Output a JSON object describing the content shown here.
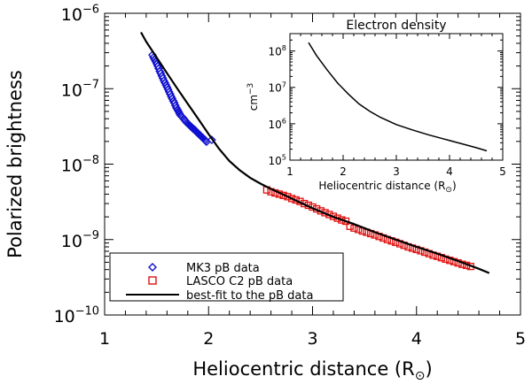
{
  "chart_data": {
    "type": "scatter",
    "xlabel": "Heliocentric distance (R",
    "xlabel_sub": "⊙",
    "xlabel_close": ")",
    "ylabel": "Polarized brightness",
    "xlim": [
      1,
      5
    ],
    "ylim": [
      1e-10,
      1e-06
    ],
    "yscale": "log",
    "xticks": [
      "1",
      "2",
      "3",
      "4",
      "5"
    ],
    "yticks": [
      {
        "value": 1e-10,
        "base": "10",
        "exp": "−10"
      },
      {
        "value": 1e-09,
        "base": "10",
        "exp": "−9"
      },
      {
        "value": 1e-08,
        "base": "10",
        "exp": "−8"
      },
      {
        "value": 1e-07,
        "base": "10",
        "exp": "−7"
      },
      {
        "value": 1e-06,
        "base": "10",
        "exp": "−6"
      }
    ],
    "series": [
      {
        "name": "MK3 pB data",
        "marker": "diamond",
        "color": "#1010d0",
        "x": [
          1.46,
          1.47,
          1.48,
          1.49,
          1.5,
          1.51,
          1.52,
          1.53,
          1.54,
          1.55,
          1.56,
          1.57,
          1.58,
          1.59,
          1.6,
          1.61,
          1.62,
          1.63,
          1.64,
          1.65,
          1.66,
          1.67,
          1.68,
          1.69,
          1.7,
          1.71,
          1.72,
          1.73,
          1.74,
          1.75,
          1.76,
          1.77,
          1.78,
          1.79,
          1.8,
          1.81,
          1.82,
          1.83,
          1.84,
          1.85,
          1.86,
          1.87,
          1.88,
          1.89,
          1.9,
          1.91,
          1.92,
          1.93,
          1.94,
          1.95,
          1.96,
          1.97,
          1.98,
          2.03
        ],
        "y": [
          2.8e-07,
          2.6e-07,
          2.45e-07,
          2.3e-07,
          2.15e-07,
          2e-07,
          1.85e-07,
          1.7e-07,
          1.6e-07,
          1.48e-07,
          1.38e-07,
          1.28e-07,
          1.2e-07,
          1.12e-07,
          1.05e-07,
          9.8e-08,
          9.1e-08,
          8.5e-08,
          7.9e-08,
          7.4e-08,
          6.9e-08,
          6.5e-08,
          6e-08,
          5.6e-08,
          5.3e-08,
          5e-08,
          4.7e-08,
          4.45e-08,
          4.3e-08,
          4.15e-08,
          4e-08,
          3.85e-08,
          3.7e-08,
          3.55e-08,
          3.45e-08,
          3.35e-08,
          3.25e-08,
          3.15e-08,
          3.05e-08,
          2.95e-08,
          2.9e-08,
          2.82e-08,
          2.72e-08,
          2.62e-08,
          2.55e-08,
          2.48e-08,
          2.4e-08,
          2.32e-08,
          2.25e-08,
          2.2e-08,
          2.12e-08,
          2.05e-08,
          1.98e-08,
          2.1e-08
        ]
      },
      {
        "name": "LASCO C2 pB data",
        "marker": "square",
        "color": "#e01010",
        "x": [
          2.56,
          2.6,
          2.64,
          2.68,
          2.72,
          2.76,
          2.8,
          2.84,
          2.88,
          2.92,
          2.96,
          3.0,
          3.04,
          3.08,
          3.12,
          3.16,
          3.2,
          3.24,
          3.28,
          3.32,
          3.36,
          3.4,
          3.44,
          3.48,
          3.52,
          3.56,
          3.6,
          3.64,
          3.68,
          3.72,
          3.76,
          3.8,
          3.84,
          3.88,
          3.92,
          3.96,
          4.0,
          4.04,
          4.08,
          4.12,
          4.16,
          4.2,
          4.24,
          4.28,
          4.32,
          4.36,
          4.4,
          4.44,
          4.48,
          4.52
        ],
        "y": [
          4.55e-09,
          4.3e-09,
          4.15e-09,
          4e-09,
          3.85e-09,
          3.7e-09,
          3.5e-09,
          3.35e-09,
          3.2e-09,
          3e-09,
          2.85e-09,
          2.7e-09,
          2.55e-09,
          2.4e-09,
          2.27e-09,
          2.15e-09,
          2.03e-09,
          1.92e-09,
          1.82e-09,
          1.75e-09,
          1.5e-09,
          1.42e-09,
          1.36e-09,
          1.3e-09,
          1.25e-09,
          1.2e-09,
          1.15e-09,
          1.1e-09,
          1.05e-09,
          1e-09,
          9.6e-10,
          9.2e-10,
          8.8e-10,
          8.4e-10,
          8e-10,
          7.7e-10,
          7.4e-10,
          7.1e-10,
          6.8e-10,
          6.5e-10,
          6.2e-10,
          6e-10,
          5.75e-10,
          5.5e-10,
          5.3e-10,
          5.1e-10,
          4.9e-10,
          4.7e-10,
          4.55e-10,
          4.4e-10
        ]
      },
      {
        "name": "best-fit to the pB data",
        "marker": "line",
        "color": "#000000",
        "x": [
          1.35,
          1.4,
          1.5,
          1.6,
          1.7,
          1.8,
          1.9,
          2.0,
          2.1,
          2.2,
          2.3,
          2.4,
          2.5,
          2.6,
          2.8,
          3.0,
          3.2,
          3.4,
          3.6,
          3.8,
          4.0,
          4.2,
          4.4,
          4.6,
          4.7
        ],
        "y": [
          5.6e-07,
          4.2e-07,
          2.6e-07,
          1.6e-07,
          1e-07,
          6.3e-08,
          4e-08,
          2.5e-08,
          1.6e-08,
          1.1e-08,
          8.3e-09,
          6.6e-09,
          5.5e-09,
          4.7e-09,
          3.5e-09,
          2.6e-09,
          2e-09,
          1.6e-09,
          1.25e-09,
          1e-09,
          8e-10,
          6.5e-10,
          5.2e-10,
          4.1e-10,
          3.6e-10
        ]
      }
    ],
    "legend": {
      "position": "bottom-left",
      "entries": [
        "MK3 pB data",
        "LASCO C2 pB data",
        "best-fit to the pB data"
      ]
    },
    "inset": {
      "type": "line",
      "title": "Electron density",
      "xlabel": "Heliocentric distance (R",
      "xlabel_sub": "⊙",
      "xlabel_close": ")",
      "ylabel": "cm",
      "ylabel_exp": "−3",
      "xlim": [
        1,
        5
      ],
      "ylim": [
        100000.0,
        300000000.0
      ],
      "yscale": "log",
      "xticks": [
        "1",
        "2",
        "3",
        "4",
        "5"
      ],
      "yticks": [
        {
          "value": 100000.0,
          "base": "10",
          "exp": "5"
        },
        {
          "value": 1000000.0,
          "base": "10",
          "exp": "6"
        },
        {
          "value": 10000000.0,
          "base": "10",
          "exp": "7"
        },
        {
          "value": 100000000.0,
          "base": "10",
          "exp": "8"
        }
      ],
      "x": [
        1.35,
        1.5,
        1.7,
        1.9,
        2.1,
        2.3,
        2.5,
        2.7,
        3.0,
        3.3,
        3.6,
        3.9,
        4.2,
        4.5,
        4.7
      ],
      "y": [
        170000000.0,
        75000000.0,
        30000000.0,
        13000000.0,
        6500000.0,
        3500000.0,
        2200000.0,
        1500000.0,
        950000.0,
        680000.0,
        500000.0,
        380000.0,
        290000.0,
        220000.0,
        180000.0
      ]
    }
  }
}
